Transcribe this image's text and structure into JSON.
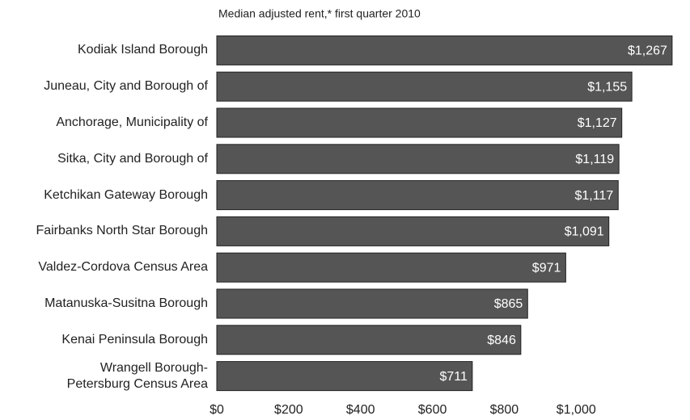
{
  "chart_data": {
    "type": "bar",
    "orientation": "horizontal",
    "title": "Median adjusted rent,* first quarter 2010",
    "categories": [
      "Kodiak Island Borough",
      "Juneau, City and Borough of",
      "Anchorage, Municipality of",
      "Sitka, City and Borough of",
      "Ketchikan Gateway Borough",
      "Fairbanks North Star Borough",
      "Valdez-Cordova Census Area",
      "Matanuska-Susitna Borough",
      "Kenai Peninsula Borough",
      "Wrangell Borough-\nPetersburg Census Area"
    ],
    "values": [
      1267,
      1155,
      1127,
      1119,
      1117,
      1091,
      971,
      865,
      846,
      711
    ],
    "value_labels": [
      "$1,267",
      "$1,155",
      "$1,127",
      "$1,119",
      "$1,117",
      "$1,091",
      "$971",
      "$865",
      "$846",
      "$711"
    ],
    "color": "#555555",
    "xlim": [
      0,
      1310
    ],
    "xticks": [
      {
        "value": 0,
        "label": "$0"
      },
      {
        "value": 200,
        "label": "$200"
      },
      {
        "value": 400,
        "label": "$400"
      },
      {
        "value": 600,
        "label": "$600"
      },
      {
        "value": 800,
        "label": "$800"
      },
      {
        "value": 1000,
        "label": "$1,000"
      }
    ]
  }
}
